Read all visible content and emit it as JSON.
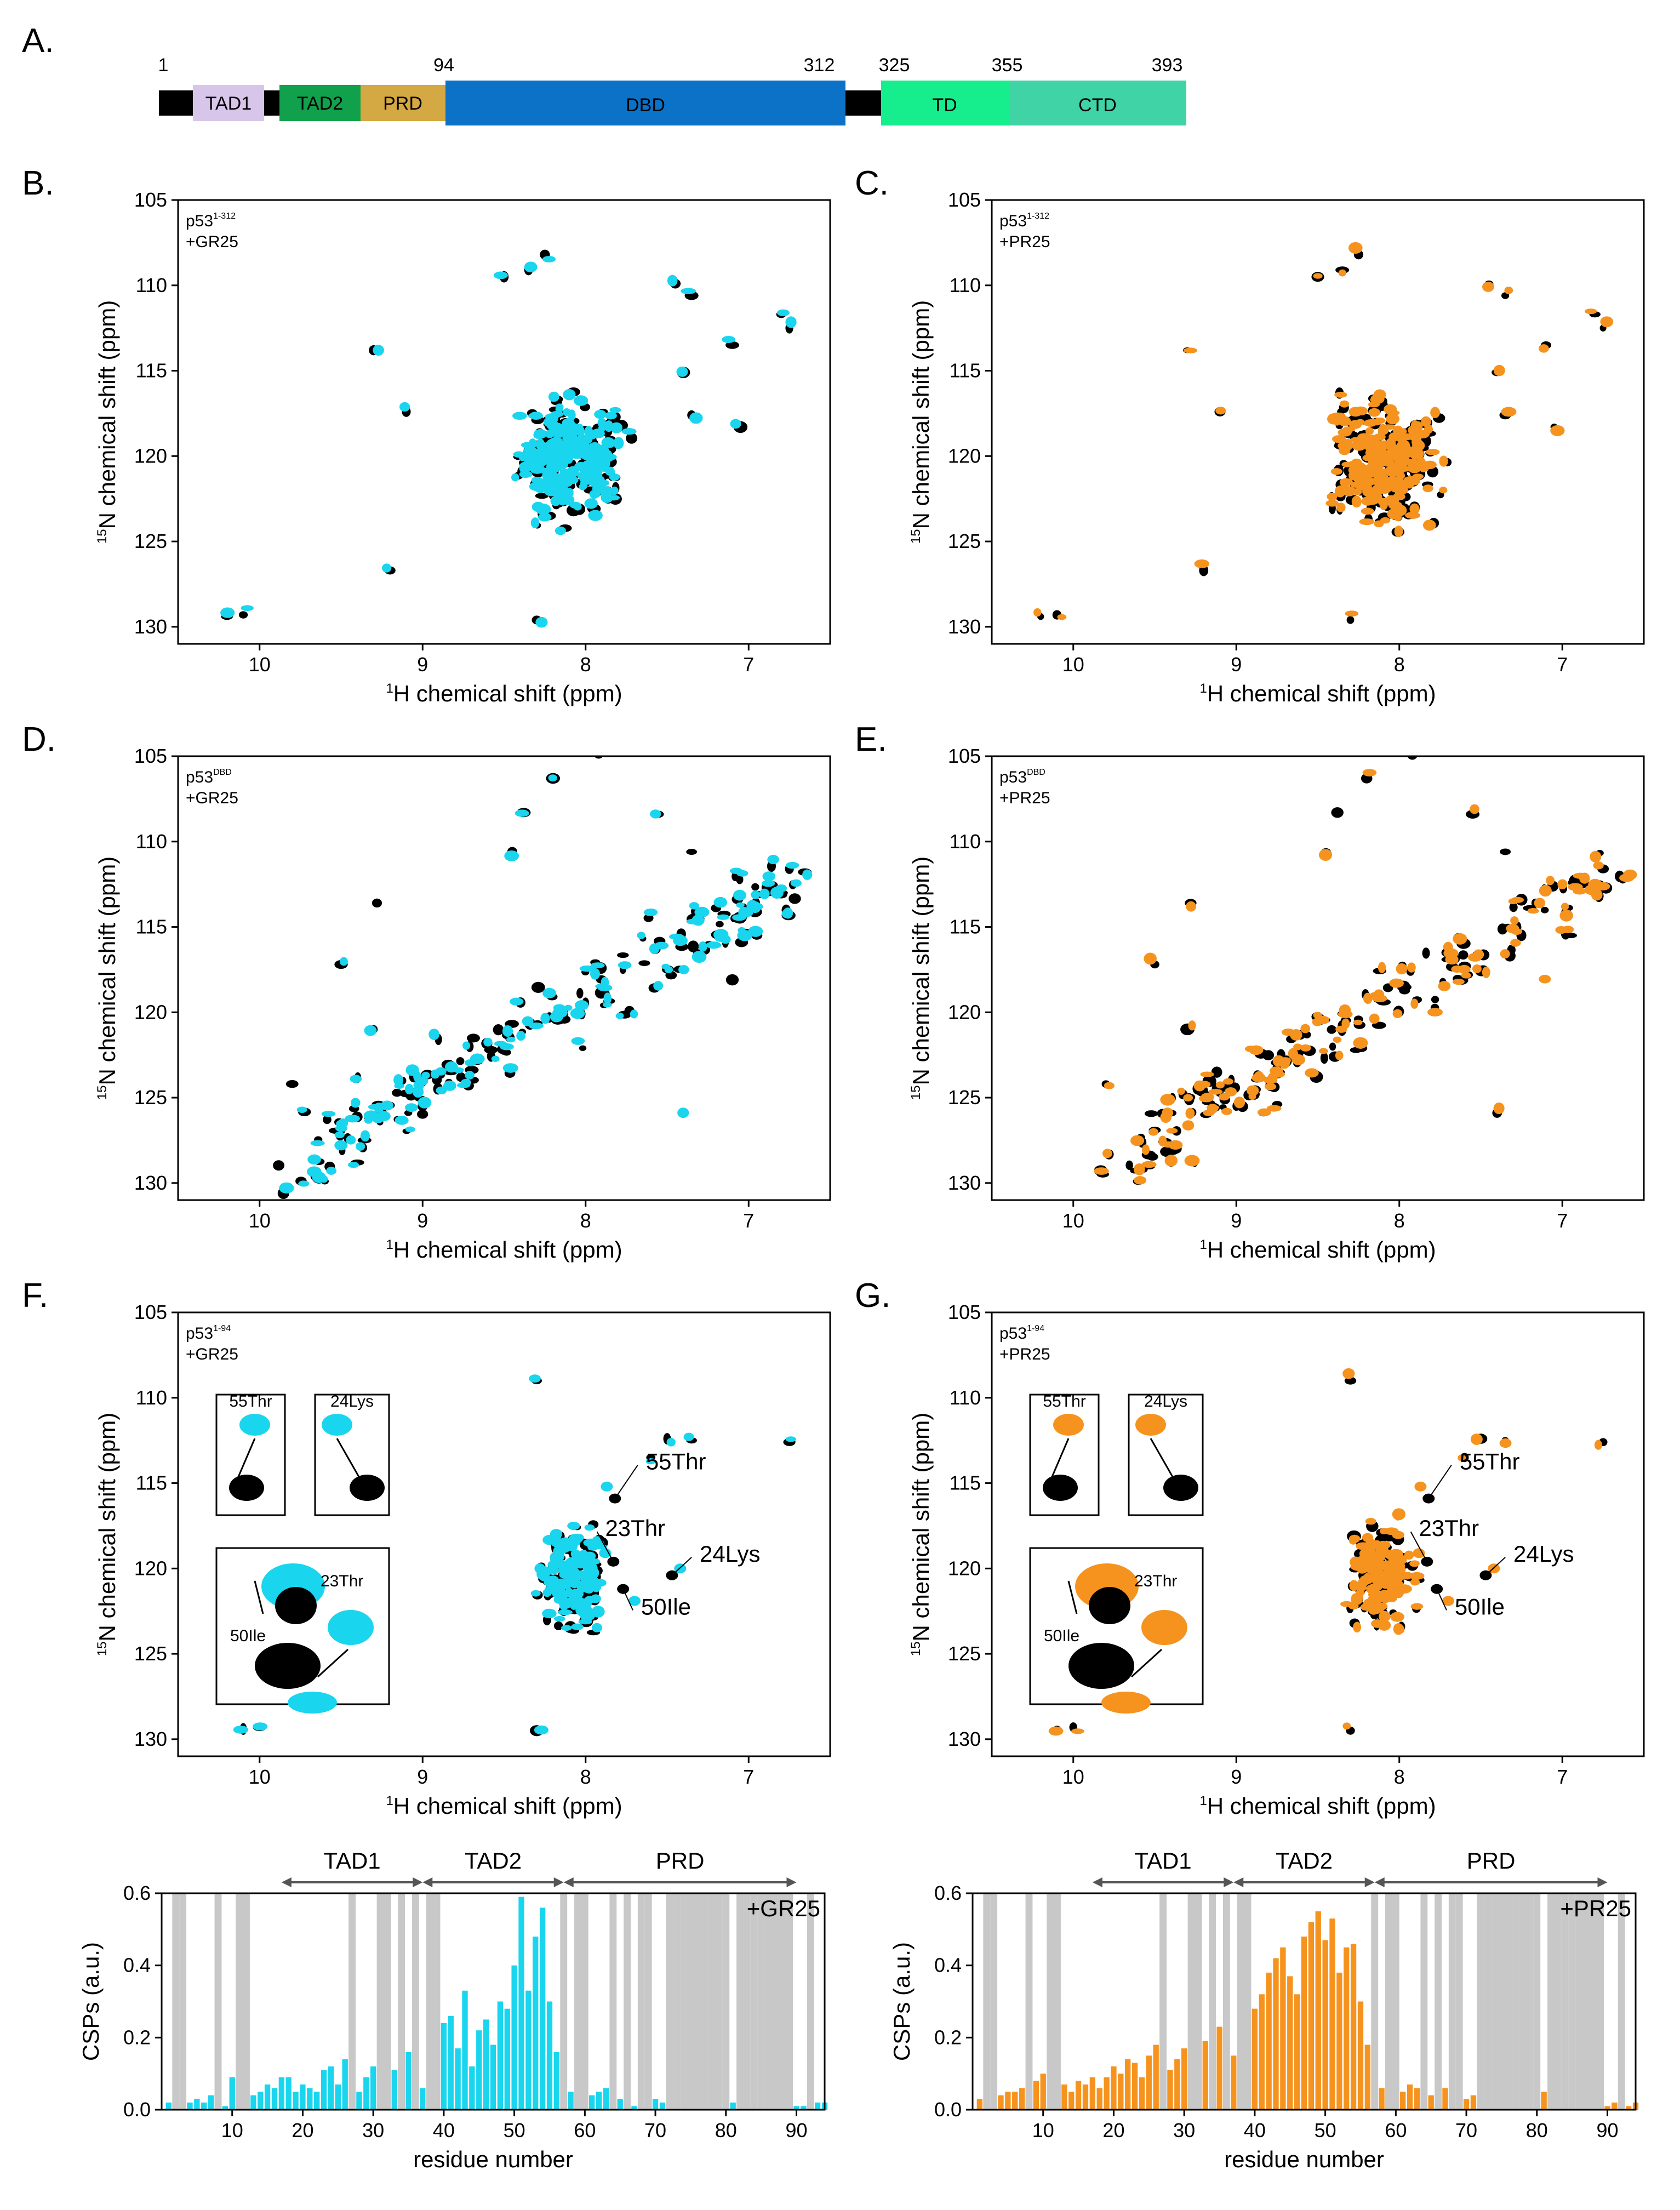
{
  "colors": {
    "gr25": "#19d5ee",
    "pr25": "#f5931e",
    "ref": "#000000",
    "bar_grey": "#c8c8c8"
  },
  "panel_labels": [
    "A.",
    "B.",
    "C.",
    "D.",
    "E.",
    "F.",
    "G."
  ],
  "domain_map": {
    "label": "A.",
    "positions": [
      "1",
      "94",
      "312",
      "325",
      "355",
      "393"
    ],
    "domains": [
      {
        "name": "TAD1",
        "color": "#d7c6ea"
      },
      {
        "name": "TAD2",
        "color": "#11a14c"
      },
      {
        "name": "PRD",
        "color": "#d4a843"
      },
      {
        "name": "DBD",
        "color": "#0b72c8"
      },
      {
        "name": "TD",
        "color": "#16ee8d"
      },
      {
        "name": "CTD",
        "color": "#40d3a6"
      }
    ]
  },
  "spectra": {
    "xlabel_sup": "1",
    "xlabel": "H chemical shift  (ppm)",
    "ylabel_sup": "15",
    "ylabel": "N chemical shift  (ppm)",
    "x_ticks": [
      "10",
      "9",
      "8",
      "7"
    ],
    "y_ticks": [
      "105",
      "110",
      "115",
      "120",
      "125",
      "130"
    ],
    "x_range_ppm": [
      10.5,
      6.5
    ],
    "y_range_ppm": [
      105,
      131
    ],
    "panels": [
      {
        "id": "B",
        "letter": "B.",
        "construct": "p53",
        "construct_sup": "1-312",
        "ligand": "+GR25",
        "ligand_key": "gr25",
        "style": "full"
      },
      {
        "id": "C",
        "letter": "C.",
        "construct": "p53",
        "construct_sup": "1-312",
        "ligand": "+PR25",
        "ligand_key": "pr25",
        "style": "full"
      },
      {
        "id": "D",
        "letter": "D.",
        "construct": "p53",
        "construct_sup": "DBD",
        "ligand": "+GR25",
        "ligand_key": "gr25",
        "style": "dbd"
      },
      {
        "id": "E",
        "letter": "E.",
        "construct": "p53",
        "construct_sup": "DBD",
        "ligand": "+PR25",
        "ligand_key": "pr25",
        "style": "dbd"
      },
      {
        "id": "F",
        "letter": "F.",
        "construct": "p53",
        "construct_sup": "1-94",
        "ligand": "+GR25",
        "ligand_key": "gr25",
        "style": "nterm",
        "annotations": [
          "55Thr",
          "23Thr",
          "24Lys",
          "50Ile"
        ],
        "insets": [
          {
            "label": "55Thr"
          },
          {
            "label": "24Lys"
          },
          {
            "labels": [
              "23Thr",
              "50Ile"
            ]
          }
        ]
      },
      {
        "id": "G",
        "letter": "G.",
        "construct": "p53",
        "construct_sup": "1-94",
        "ligand": "+PR25",
        "ligand_key": "pr25",
        "style": "nterm",
        "annotations": [
          "55Thr",
          "23Thr",
          "24Lys",
          "50Ile"
        ],
        "insets": [
          {
            "label": "55Thr"
          },
          {
            "label": "24Lys"
          },
          {
            "labels": [
              "23Thr",
              "50Ile"
            ]
          }
        ]
      }
    ],
    "assigned_peaks": [
      {
        "name": "55Thr",
        "ref": [
          7.82,
          115.9
        ],
        "bound": [
          7.87,
          115.2
        ]
      },
      {
        "name": "23Thr",
        "ref": [
          7.83,
          119.6
        ],
        "bound": [
          7.88,
          119.1
        ]
      },
      {
        "name": "24Lys",
        "ref": [
          7.47,
          120.4
        ],
        "bound": [
          7.42,
          120.0
        ]
      },
      {
        "name": "50Ile",
        "ref": [
          7.77,
          121.2
        ],
        "bound": [
          7.7,
          121.9
        ]
      }
    ]
  },
  "chart_data": [
    {
      "type": "bar",
      "title": "",
      "legend": "+GR25",
      "legend_placement": "top-right",
      "xlabel": "residue number",
      "ylabel": "CSPs (a.u.)",
      "xlim": [
        0,
        94
      ],
      "ylim": [
        0,
        0.6
      ],
      "x_ticks": [
        "10",
        "20",
        "30",
        "40",
        "50",
        "60",
        "70",
        "80",
        "90"
      ],
      "y_ticks": [
        "0.0",
        "0.2",
        "0.4",
        "0.6"
      ],
      "regions": [
        {
          "label": "TAD1",
          "from": 17,
          "to": 37
        },
        {
          "label": "TAD2",
          "from": 37,
          "to": 57
        },
        {
          "label": "PRD",
          "from": 57,
          "to": 90
        }
      ],
      "unassigned_residues": [
        2,
        3,
        8,
        11,
        12,
        27,
        31,
        32,
        34,
        36,
        38,
        39,
        57,
        59,
        60,
        64,
        66,
        68,
        69,
        72,
        73,
        74,
        75,
        76,
        77,
        78,
        79,
        80,
        82,
        83,
        84,
        85,
        86,
        87,
        88,
        89,
        92
      ],
      "residues": [
        1,
        4,
        5,
        6,
        7,
        9,
        10,
        13,
        14,
        15,
        16,
        17,
        18,
        19,
        20,
        21,
        22,
        23,
        24,
        25,
        26,
        28,
        29,
        30,
        33,
        35,
        37,
        40,
        41,
        42,
        43,
        44,
        45,
        46,
        47,
        48,
        49,
        50,
        51,
        52,
        53,
        54,
        55,
        56,
        58,
        61,
        62,
        63,
        65,
        67,
        70,
        71,
        81,
        90,
        91,
        93,
        94
      ],
      "values": [
        0.02,
        0.02,
        0.03,
        0.02,
        0.04,
        0.01,
        0.09,
        0.04,
        0.05,
        0.07,
        0.06,
        0.09,
        0.09,
        0.05,
        0.07,
        0.06,
        0.05,
        0.11,
        0.12,
        0.07,
        0.14,
        0.05,
        0.09,
        0.12,
        0.11,
        0.16,
        0.06,
        0.24,
        0.26,
        0.17,
        0.33,
        0.12,
        0.22,
        0.25,
        0.18,
        0.3,
        0.28,
        0.4,
        0.59,
        0.33,
        0.48,
        0.56,
        0.3,
        0.16,
        0.05,
        0.04,
        0.05,
        0.06,
        0.03,
        0.01,
        0.03,
        0.02,
        0.02,
        0.01,
        0.01,
        0.02,
        0.02
      ]
    },
    {
      "type": "bar",
      "title": "",
      "legend": "+PR25",
      "legend_placement": "top-right",
      "xlabel": "residue number",
      "ylabel": "CSPs (a.u.)",
      "xlim": [
        0,
        94
      ],
      "ylim": [
        0,
        0.6
      ],
      "x_ticks": [
        "10",
        "20",
        "30",
        "40",
        "50",
        "60",
        "70",
        "80",
        "90"
      ],
      "y_ticks": [
        "0.0",
        "0.2",
        "0.4",
        "0.6"
      ],
      "regions": [
        {
          "label": "TAD1",
          "from": 17,
          "to": 37
        },
        {
          "label": "TAD2",
          "from": 37,
          "to": 57
        },
        {
          "label": "PRD",
          "from": 57,
          "to": 90
        }
      ],
      "unassigned_residues": [
        2,
        3,
        8,
        11,
        12,
        27,
        31,
        32,
        34,
        36,
        38,
        39,
        57,
        59,
        60,
        64,
        66,
        68,
        69,
        72,
        73,
        74,
        75,
        76,
        77,
        78,
        79,
        80,
        82,
        83,
        84,
        85,
        86,
        87,
        88,
        89,
        92
      ],
      "residues": [
        1,
        4,
        5,
        6,
        7,
        9,
        10,
        13,
        14,
        15,
        16,
        17,
        18,
        19,
        20,
        21,
        22,
        23,
        24,
        25,
        26,
        28,
        29,
        30,
        33,
        35,
        37,
        40,
        41,
        42,
        43,
        44,
        45,
        46,
        47,
        48,
        49,
        50,
        51,
        52,
        53,
        54,
        55,
        56,
        58,
        61,
        62,
        63,
        65,
        67,
        70,
        71,
        81,
        90,
        91,
        93,
        94
      ],
      "values": [
        0.03,
        0.04,
        0.05,
        0.05,
        0.06,
        0.08,
        0.1,
        0.07,
        0.05,
        0.08,
        0.07,
        0.09,
        0.06,
        0.09,
        0.12,
        0.1,
        0.14,
        0.13,
        0.09,
        0.15,
        0.18,
        0.11,
        0.14,
        0.17,
        0.19,
        0.23,
        0.15,
        0.28,
        0.32,
        0.38,
        0.42,
        0.45,
        0.37,
        0.32,
        0.48,
        0.52,
        0.55,
        0.47,
        0.53,
        0.38,
        0.45,
        0.46,
        0.3,
        0.18,
        0.06,
        0.05,
        0.07,
        0.06,
        0.04,
        0.06,
        0.03,
        0.04,
        0.05,
        0.01,
        0.02,
        0.01,
        0.02
      ]
    }
  ]
}
